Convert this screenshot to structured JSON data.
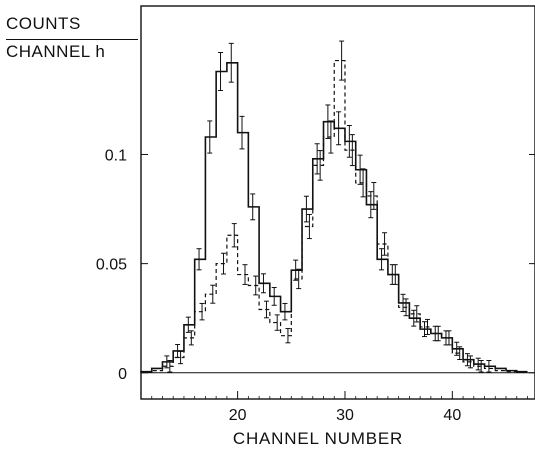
{
  "chart_data": {
    "type": "step",
    "ylabel_numerator": "COUNTS",
    "ylabel_denominator": "CHANNEL h",
    "xlabel": "CHANNEL NUMBER",
    "xlim": [
      11,
      47.7
    ],
    "ylim": [
      -0.012,
      0.168
    ],
    "x_ticks": [
      20,
      30,
      40
    ],
    "x_tick_labels": [
      "20",
      "30",
      "40"
    ],
    "y_ticks": [
      0,
      0.05,
      0.1
    ],
    "y_tick_labels": [
      "0",
      "0.05",
      "0.1"
    ],
    "grid": false,
    "series": [
      {
        "style": "solid",
        "x": [
          11,
          12,
          13,
          14,
          15,
          16,
          17,
          18,
          19,
          20,
          21,
          22,
          23,
          24,
          25,
          26,
          27,
          28,
          29,
          30,
          31,
          32,
          33,
          34,
          35,
          36,
          37,
          38,
          39,
          40,
          41,
          42,
          43,
          44,
          45,
          46
        ],
        "y": [
          0.0005,
          0.002,
          0.005,
          0.01,
          0.022,
          0.052,
          0.108,
          0.138,
          0.142,
          0.11,
          0.076,
          0.041,
          0.035,
          0.028,
          0.047,
          0.075,
          0.098,
          0.115,
          0.112,
          0.106,
          0.093,
          0.077,
          0.052,
          0.045,
          0.032,
          0.025,
          0.02,
          0.018,
          0.016,
          0.011,
          0.006,
          0.004,
          0.003,
          0.002,
          0.001,
          0.0005
        ]
      },
      {
        "style": "dashed",
        "x": [
          11,
          12,
          13,
          14,
          15,
          16,
          17,
          18,
          19,
          20,
          21,
          22,
          23,
          24,
          25,
          26,
          27,
          28,
          29,
          30,
          31,
          32,
          33,
          34,
          35,
          36,
          37,
          38,
          39,
          40,
          41,
          42,
          43,
          44,
          45,
          46
        ],
        "y": [
          0.0005,
          0.001,
          0.003,
          0.007,
          0.016,
          0.028,
          0.036,
          0.05,
          0.063,
          0.045,
          0.04,
          0.029,
          0.023,
          0.017,
          0.043,
          0.067,
          0.095,
          0.108,
          0.143,
          0.102,
          0.087,
          0.081,
          0.059,
          0.045,
          0.03,
          0.027,
          0.021,
          0.018,
          0.016,
          0.009,
          0.005,
          0.003,
          0.002,
          0.001,
          0.0005,
          0.0002
        ]
      }
    ]
  }
}
